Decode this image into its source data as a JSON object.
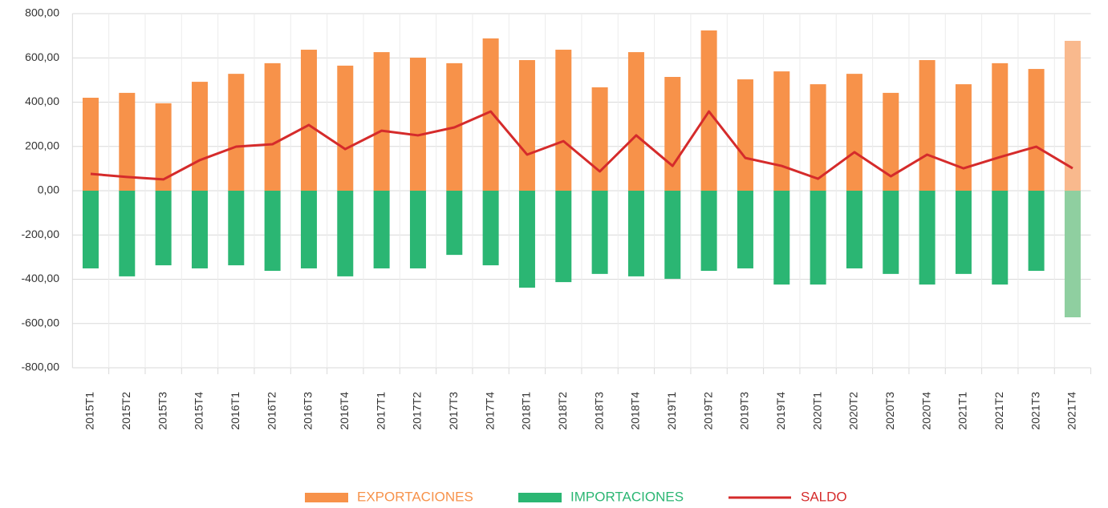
{
  "chart_data": {
    "type": "bar-line",
    "categories": [
      "2015T1",
      "2015T2",
      "2015T3",
      "2015T4",
      "2016T1",
      "2016T2",
      "2016T3",
      "2016T4",
      "2017T1",
      "2017T2",
      "2017T3",
      "2017T4",
      "2018T1",
      "2018T2",
      "2018T3",
      "2018T4",
      "2019T1",
      "2019T2",
      "2019T3",
      "2019T4",
      "2020T1",
      "2020T2",
      "2020T3",
      "2020T4",
      "2021T1",
      "2021T2",
      "2021T3",
      "2021T4"
    ],
    "series": [
      {
        "name": "EXPORTACIONES",
        "kind": "bar",
        "color": "#f7924a",
        "colors": [
          "#f7924a",
          "#f7924a",
          "#f7924a",
          "#f7924a",
          "#f7924a",
          "#f7924a",
          "#f7924a",
          "#f7924a",
          "#f7924a",
          "#f7924a",
          "#f7924a",
          "#f7924a",
          "#f7924a",
          "#f7924a",
          "#f7924a",
          "#f7924a",
          "#f7924a",
          "#f7924a",
          "#f7924a",
          "#f7924a",
          "#f7924a",
          "#f7924a",
          "#f7924a",
          "#f7924a",
          "#f7924a",
          "#f7924a",
          "#f7924a",
          "#f9b98d"
        ],
        "values": [
          420,
          442,
          395,
          492,
          528,
          576,
          637,
          565,
          626,
          601,
          576,
          688,
          590,
          637,
          467,
          626,
          514,
          724,
          503,
          539,
          481,
          528,
          442,
          590,
          481,
          576,
          550,
          677
        ]
      },
      {
        "name": "IMPORTACIONES",
        "kind": "bar",
        "color": "#2bb673",
        "colors": [
          "#2bb673",
          "#2bb673",
          "#2bb673",
          "#2bb673",
          "#2bb673",
          "#2bb673",
          "#2bb673",
          "#2bb673",
          "#2bb673",
          "#2bb673",
          "#2bb673",
          "#2bb673",
          "#2bb673",
          "#2bb673",
          "#2bb673",
          "#2bb673",
          "#2bb673",
          "#2bb673",
          "#2bb673",
          "#2bb673",
          "#2bb673",
          "#2bb673",
          "#2bb673",
          "#2bb673",
          "#2bb673",
          "#2bb673",
          "#2bb673",
          "#8fcfa0"
        ],
        "values": [
          -351,
          -387,
          -337,
          -351,
          -337,
          -362,
          -351,
          -387,
          -351,
          -351,
          -290,
          -337,
          -438,
          -413,
          -376,
          -387,
          -398,
          -362,
          -351,
          -424,
          -424,
          -351,
          -376,
          -424,
          -376,
          -424,
          -362,
          -572
        ]
      },
      {
        "name": "SALDO",
        "kind": "line",
        "color": "#d52b2b",
        "values": [
          76,
          62,
          51,
          138,
          199,
          210,
          297,
          188,
          271,
          250,
          286,
          358,
          163,
          224,
          87,
          250,
          112,
          358,
          148,
          112,
          54,
          174,
          65,
          163,
          101,
          152,
          199,
          101
        ]
      }
    ],
    "ylim": [
      -800,
      800
    ],
    "yticks": [
      {
        "value": -800,
        "label": "-800,00"
      },
      {
        "value": -600,
        "label": "-600,00"
      },
      {
        "value": -400,
        "label": "-400,00"
      },
      {
        "value": -200,
        "label": "-200,00"
      },
      {
        "value": 0,
        "label": "0,00"
      },
      {
        "value": 200,
        "label": "200,00"
      },
      {
        "value": 400,
        "label": "400,00"
      },
      {
        "value": 600,
        "label": "600,00"
      },
      {
        "value": 800,
        "label": "800,00"
      }
    ],
    "grid": true
  }
}
